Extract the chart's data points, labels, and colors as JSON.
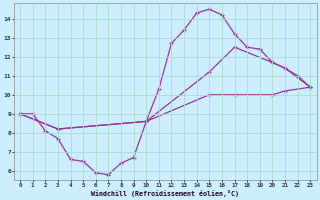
{
  "title": "",
  "xlabel": "Windchill (Refroidissement éolien,°C)",
  "ylabel": "",
  "bg_color": "#cceeff",
  "grid_color": "#aaddcc",
  "line_color": "#993399",
  "xlim": [
    -0.5,
    23.5
  ],
  "ylim": [
    5.5,
    14.8
  ],
  "xticks": [
    0,
    1,
    2,
    3,
    4,
    5,
    6,
    7,
    8,
    9,
    10,
    11,
    12,
    13,
    14,
    15,
    16,
    17,
    18,
    19,
    20,
    21,
    22,
    23
  ],
  "yticks": [
    6,
    7,
    8,
    9,
    10,
    11,
    12,
    13,
    14
  ],
  "line1_x": [
    0,
    1,
    2,
    3,
    4,
    5,
    6,
    7,
    8,
    9,
    10,
    11,
    12,
    13,
    14,
    15,
    16,
    17,
    18,
    19,
    20,
    21,
    22,
    23
  ],
  "line1_y": [
    9.0,
    9.0,
    8.1,
    7.7,
    6.6,
    6.5,
    5.9,
    5.8,
    6.4,
    6.7,
    8.6,
    10.3,
    12.7,
    13.4,
    14.3,
    14.5,
    14.2,
    13.2,
    12.5,
    12.4,
    11.7,
    11.4,
    11.0,
    10.4
  ],
  "line2_x": [
    0,
    3,
    10,
    15,
    17,
    20,
    21,
    23
  ],
  "line2_y": [
    9.0,
    8.2,
    8.6,
    11.2,
    12.5,
    11.7,
    11.4,
    10.4
  ],
  "line3_x": [
    0,
    3,
    10,
    15,
    17,
    20,
    21,
    23
  ],
  "line3_y": [
    9.0,
    8.2,
    8.6,
    10.0,
    10.0,
    10.0,
    10.2,
    10.4
  ]
}
